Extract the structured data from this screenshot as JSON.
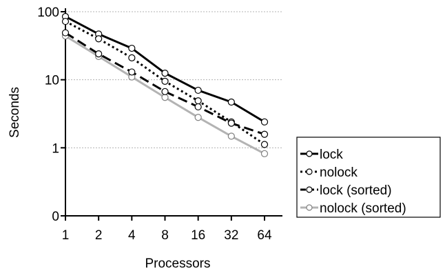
{
  "chart_data": {
    "type": "line",
    "xlabel": "Processors",
    "ylabel": "Seconds",
    "x_scale": "log2",
    "y_scale": "log10",
    "categories": [
      "1",
      "2",
      "4",
      "8",
      "16",
      "32",
      "64"
    ],
    "x": [
      1,
      2,
      4,
      8,
      16,
      32,
      64
    ],
    "y_ticks": [
      {
        "label": "0",
        "value": 0.1
      },
      {
        "label": "1",
        "value": 1
      },
      {
        "label": "10",
        "value": 10
      },
      {
        "label": "100",
        "value": 100
      }
    ],
    "ylim": [
      0.1,
      100
    ],
    "grid": "horizontal dotted at 1, 10, 100",
    "legend_placement": "right, outside plot, lower",
    "series": [
      {
        "name": "lock",
        "values": [
          85,
          47,
          29,
          12.5,
          7,
          4.7,
          2.4
        ],
        "color": "#000000",
        "style": "solid"
      },
      {
        "name": "nolock",
        "values": [
          72,
          40,
          21,
          9.5,
          4.9,
          2.4,
          1.12
        ],
        "color": "#000000",
        "style": "dotted"
      },
      {
        "name": "lock (sorted)",
        "values": [
          49,
          24,
          13,
          6.7,
          4,
          2.3,
          1.58
        ],
        "color": "#000000",
        "style": "dashed"
      },
      {
        "name": "nolock (sorted)",
        "values": [
          44,
          22,
          11,
          5.5,
          2.8,
          1.48,
          0.82
        ],
        "color": "#b3b3b3",
        "style": "solid"
      }
    ]
  }
}
